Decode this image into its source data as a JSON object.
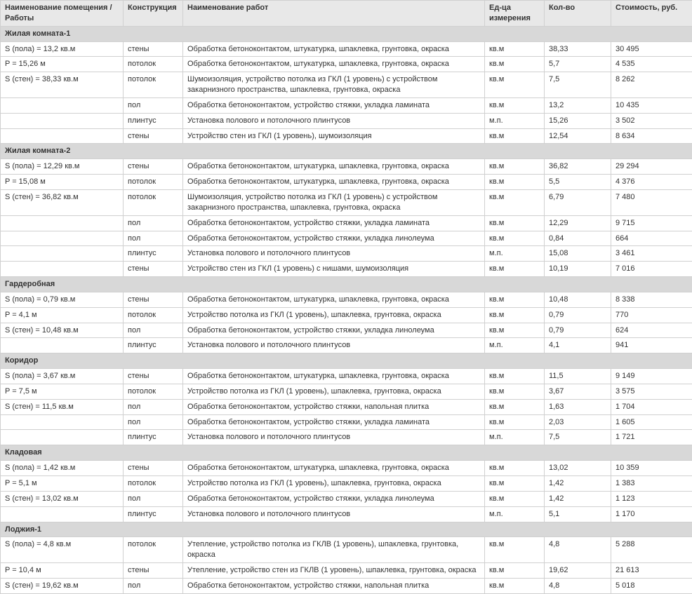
{
  "headers": {
    "room": "Наименование помещения / Работы",
    "constr": "Конструкция",
    "work": "Наименование работ",
    "unit": "Ед-ца измерения",
    "qty": "Кол-во",
    "cost": "Стоимость, руб."
  },
  "sections": [
    {
      "title": "Жилая комната-1",
      "rows": [
        {
          "room": "S (пола) = 13,2 кв.м",
          "constr": "стены",
          "work": "Обработка бетоноконтактом, штукатурка, шпаклевка, грунтовка, окраска",
          "unit": "кв.м",
          "qty": "38,33",
          "cost": "30 495"
        },
        {
          "room": "P = 15,26 м",
          "constr": "потолок",
          "work": "Обработка бетоноконтактом, штукатурка, шпаклевка, грунтовка, окраска",
          "unit": "кв.м",
          "qty": "5,7",
          "cost": "4 535"
        },
        {
          "room": "S (стен) = 38,33 кв.м",
          "constr": "потолок",
          "work": "Шумоизоляция, устройство потолка из ГКЛ (1 уровень) с устройством закарнизного пространства, шпаклевка, грунтовка, окраска",
          "unit": "кв.м",
          "qty": "7,5",
          "cost": "8 262"
        },
        {
          "room": "",
          "constr": "пол",
          "work": "Обработка бетоноконтактом, устройство стяжки, укладка ламината",
          "unit": "кв.м",
          "qty": "13,2",
          "cost": "10 435"
        },
        {
          "room": "",
          "constr": "плинтус",
          "work": "Установка полового и потолочного плинтусов",
          "unit": "м.п.",
          "qty": "15,26",
          "cost": "3 502"
        },
        {
          "room": "",
          "constr": "стены",
          "work": "Устройство стен из ГКЛ (1 уровень), шумоизоляция",
          "unit": "кв.м",
          "qty": "12,54",
          "cost": "8 634"
        }
      ]
    },
    {
      "title": "Жилая комната-2",
      "rows": [
        {
          "room": "S (пола) = 12,29 кв.м",
          "constr": "стены",
          "work": "Обработка бетоноконтактом, штукатурка, шпаклевка, грунтовка, окраска",
          "unit": "кв.м",
          "qty": "36,82",
          "cost": "29 294"
        },
        {
          "room": "P = 15,08 м",
          "constr": "потолок",
          "work": "Обработка бетоноконтактом, штукатурка, шпаклевка, грунтовка, окраска",
          "unit": "кв.м",
          "qty": "5,5",
          "cost": "4 376"
        },
        {
          "room": "S (стен) = 36,82 кв.м",
          "constr": "потолок",
          "work": "Шумоизоляция, устройство потолка из ГКЛ (1 уровень) с устройством закарнизного пространства, шпаклевка, грунтовка, окраска",
          "unit": "кв.м",
          "qty": "6,79",
          "cost": "7 480"
        },
        {
          "room": "",
          "constr": "пол",
          "work": "Обработка бетоноконтактом, устройство стяжки, укладка ламината",
          "unit": "кв.м",
          "qty": "12,29",
          "cost": "9 715"
        },
        {
          "room": "",
          "constr": "пол",
          "work": "Обработка бетоноконтактом, устройство стяжки, укладка линолеума",
          "unit": "кв.м",
          "qty": "0,84",
          "cost": "664"
        },
        {
          "room": "",
          "constr": "плинтус",
          "work": "Установка полового и потолочного плинтусов",
          "unit": "м.п.",
          "qty": "15,08",
          "cost": "3 461"
        },
        {
          "room": "",
          "constr": "стены",
          "work": "Устройство стен из ГКЛ (1 уровень) с нишами, шумоизоляция",
          "unit": "кв.м",
          "qty": "10,19",
          "cost": "7 016"
        }
      ]
    },
    {
      "title": "Гардеробная",
      "rows": [
        {
          "room": "S (пола) = 0,79 кв.м",
          "constr": "стены",
          "work": "Обработка бетоноконтактом, штукатурка, шпаклевка, грунтовка, окраска",
          "unit": "кв.м",
          "qty": "10,48",
          "cost": "8 338"
        },
        {
          "room": "P = 4,1 м",
          "constr": "потолок",
          "work": "Устройство потолка из ГКЛ (1 уровень), шпаклевка, грунтовка, окраска",
          "unit": "кв.м",
          "qty": "0,79",
          "cost": "770"
        },
        {
          "room": "S (стен) = 10,48 кв.м",
          "constr": "пол",
          "work": "Обработка бетоноконтактом, устройство стяжки, укладка линолеума",
          "unit": "кв.м",
          "qty": "0,79",
          "cost": "624"
        },
        {
          "room": "",
          "constr": "плинтус",
          "work": "Установка полового и потолочного плинтусов",
          "unit": "м.п.",
          "qty": "4,1",
          "cost": "941"
        }
      ]
    },
    {
      "title": "Коридор",
      "rows": [
        {
          "room": "S (пола) = 3,67 кв.м",
          "constr": "стены",
          "work": "Обработка бетоноконтактом, штукатурка, шпаклевка, грунтовка, окраска",
          "unit": "кв.м",
          "qty": "11,5",
          "cost": "9 149"
        },
        {
          "room": "P = 7,5 м",
          "constr": "потолок",
          "work": "Устройство потолка из ГКЛ (1 уровень), шпаклевка, грунтовка, окраска",
          "unit": "кв.м",
          "qty": "3,67",
          "cost": "3 575"
        },
        {
          "room": "S (стен) = 11,5 кв.м",
          "constr": "пол",
          "work": "Обработка бетоноконтактом, устройство стяжки, напольная плитка",
          "unit": "кв.м",
          "qty": "1,63",
          "cost": "1 704"
        },
        {
          "room": "",
          "constr": "пол",
          "work": "Обработка бетоноконтактом, устройство стяжки, укладка ламината",
          "unit": "кв.м",
          "qty": "2,03",
          "cost": "1 605"
        },
        {
          "room": "",
          "constr": "плинтус",
          "work": "Установка полового и потолочного плинтусов",
          "unit": "м.п.",
          "qty": "7,5",
          "cost": "1 721"
        }
      ]
    },
    {
      "title": "Кладовая",
      "rows": [
        {
          "room": "S (пола) = 1,42 кв.м",
          "constr": "стены",
          "work": "Обработка бетоноконтактом, штукатурка, шпаклевка, грунтовка, окраска",
          "unit": "кв.м",
          "qty": "13,02",
          "cost": "10 359"
        },
        {
          "room": "P = 5,1 м",
          "constr": "потолок",
          "work": "Устройство потолка из ГКЛ (1 уровень), шпаклевка, грунтовка, окраска",
          "unit": "кв.м",
          "qty": "1,42",
          "cost": "1 383"
        },
        {
          "room": "S (стен) = 13,02 кв.м",
          "constr": "пол",
          "work": "Обработка бетоноконтактом, устройство стяжки, укладка линолеума",
          "unit": "кв.м",
          "qty": "1,42",
          "cost": "1 123"
        },
        {
          "room": "",
          "constr": "плинтус",
          "work": "Установка полового и потолочного плинтусов",
          "unit": "м.п.",
          "qty": "5,1",
          "cost": "1 170"
        }
      ]
    },
    {
      "title": "Лоджия-1",
      "rows": [
        {
          "room": "S (пола) = 4,8 кв.м",
          "constr": "потолок",
          "work": "Утепление, устройство потолка из ГКЛВ (1 уровень), шпаклевка, грунтовка, окраска",
          "unit": "кв.м",
          "qty": "4,8",
          "cost": "5 288"
        },
        {
          "room": "P = 10,4 м",
          "constr": "стены",
          "work": "Утепление, устройство стен из ГКЛВ (1 уровень), шпаклевка, грунтовка, окраска",
          "unit": "кв.м",
          "qty": "19,62",
          "cost": "21 613"
        },
        {
          "room": "S (стен) = 19,62 кв.м",
          "constr": "пол",
          "work": "Обработка бетоноконтактом, устройство стяжки, напольная плитка",
          "unit": "кв.м",
          "qty": "4,8",
          "cost": "5 018"
        }
      ]
    }
  ]
}
